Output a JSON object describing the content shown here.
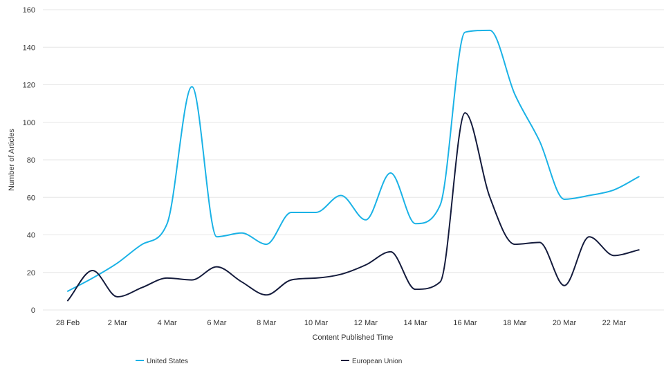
{
  "chart_data": {
    "type": "line",
    "xlabel": "Content Published Time",
    "ylabel": "Number of Articles",
    "ylim": [
      0,
      160
    ],
    "yticks": [
      0,
      20,
      40,
      60,
      80,
      100,
      120,
      140,
      160
    ],
    "x": [
      "28 Feb",
      "1 Mar",
      "2 Mar",
      "3 Mar",
      "4 Mar",
      "5 Mar",
      "6 Mar",
      "7 Mar",
      "8 Mar",
      "9 Mar",
      "10 Mar",
      "11 Mar",
      "12 Mar",
      "13 Mar",
      "14 Mar",
      "15 Mar",
      "16 Mar",
      "17 Mar",
      "18 Mar",
      "19 Mar",
      "20 Mar",
      "21 Mar",
      "22 Mar",
      "23 Mar"
    ],
    "xticks": [
      "28 Feb",
      "2 Mar",
      "4 Mar",
      "6 Mar",
      "8 Mar",
      "10 Mar",
      "12 Mar",
      "14 Mar",
      "16 Mar",
      "18 Mar",
      "20 Mar",
      "22 Mar"
    ],
    "series": [
      {
        "name": "United States",
        "color": "#1ab2e6",
        "values": [
          10,
          17,
          25,
          35,
          46,
          119,
          39,
          41,
          35,
          52,
          52,
          61,
          48,
          73,
          46,
          56,
          148,
          149,
          115,
          90,
          59,
          61,
          64,
          71
        ]
      },
      {
        "name": "European Union",
        "color": "#141b3c",
        "values": [
          5,
          21,
          7,
          12,
          17,
          16,
          23,
          15,
          8,
          16,
          17,
          19,
          24,
          31,
          11,
          15,
          105,
          60,
          35,
          36,
          13,
          39,
          29,
          32
        ]
      }
    ],
    "grid": true,
    "legend_position": "bottom"
  }
}
